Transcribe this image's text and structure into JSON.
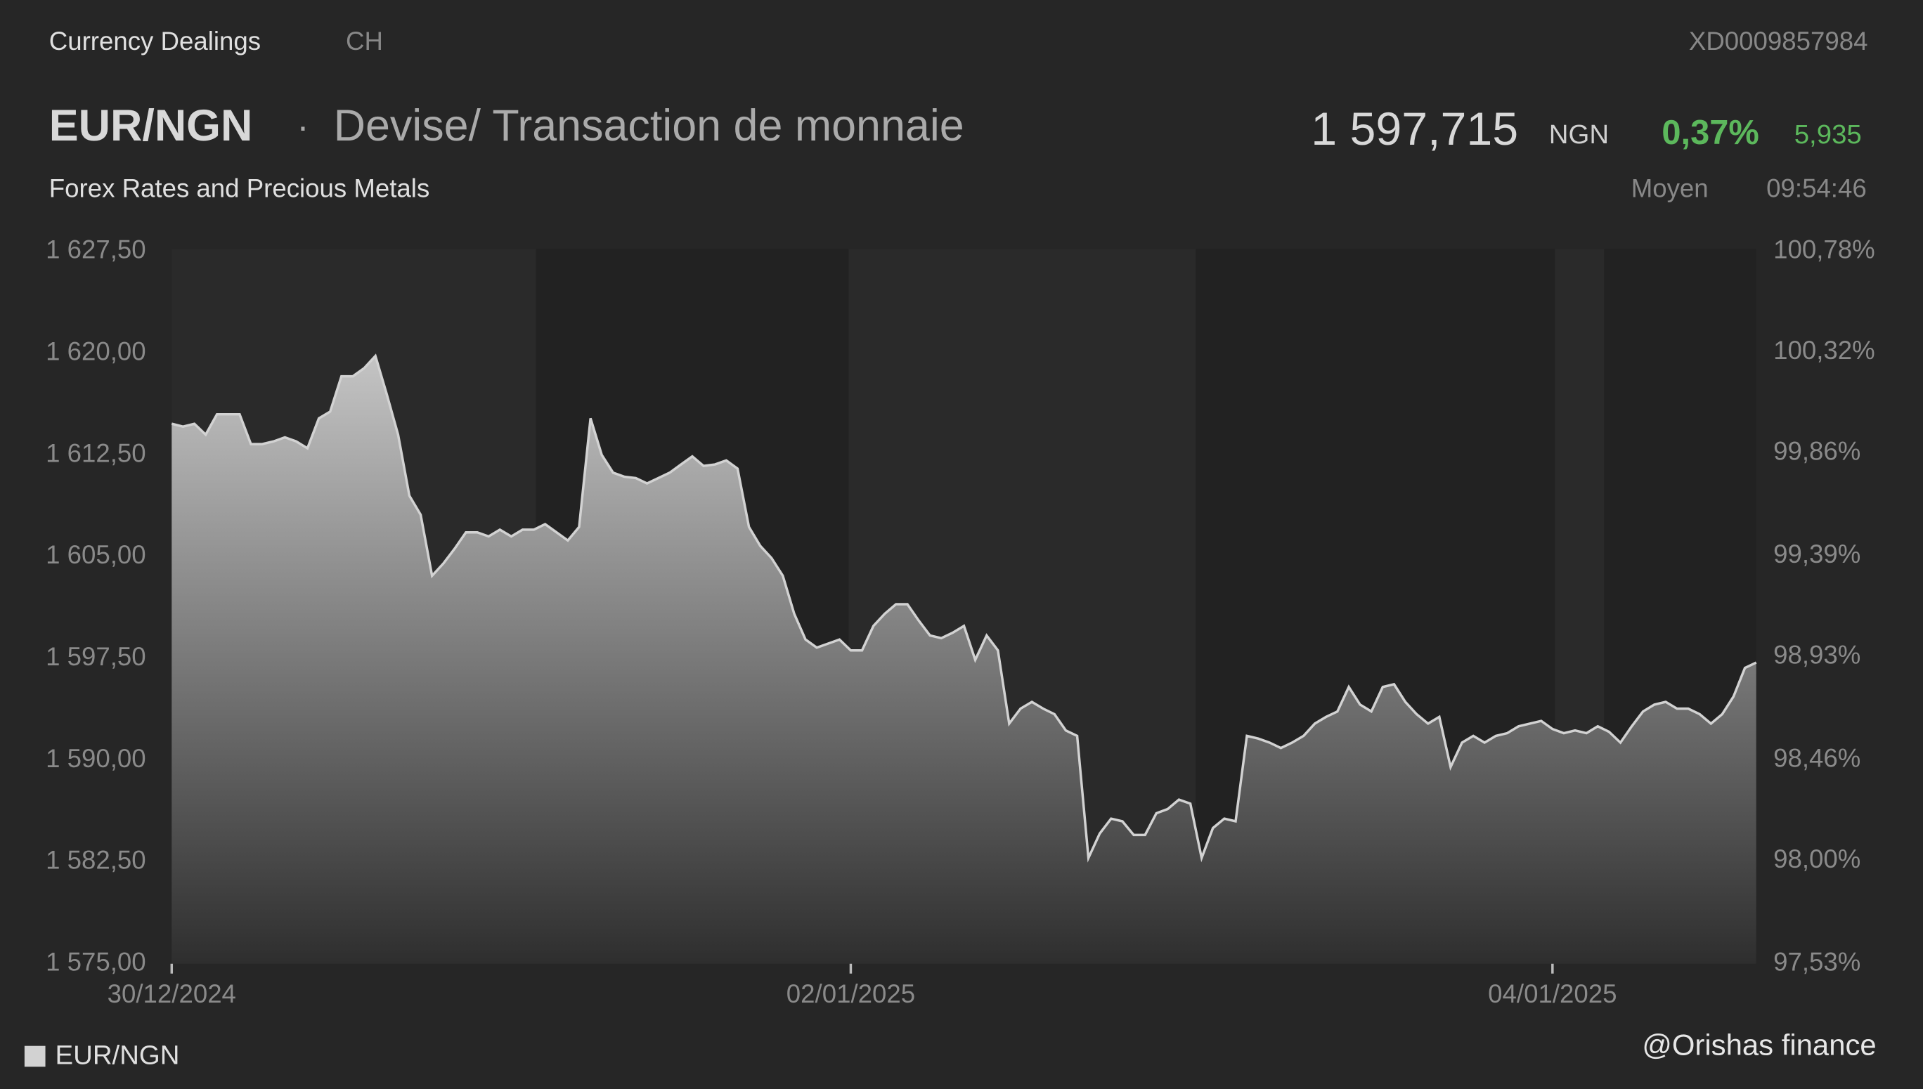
{
  "header": {
    "section": "Currency Dealings",
    "market": "CH",
    "isin": "XD0009857984",
    "symbol": "EUR/NGN",
    "separator": "·",
    "description": "Devise/ Transaction de monnaie",
    "price": "1 597,715",
    "currency": "NGN",
    "change_pct": "0,37%",
    "change_abs": "5,935",
    "category": "Forex Rates and Precious Metals",
    "price_type": "Moyen",
    "time": "09:54:46",
    "watermark": "@Orishas finance"
  },
  "chart_data": {
    "type": "area",
    "xlim": [
      0,
      140
    ],
    "xticks": [
      {
        "value": 0,
        "label": "30/12/2024"
      },
      {
        "value": 60,
        "label": "02/01/2025"
      },
      {
        "value": 122,
        "label": "04/01/2025"
      }
    ],
    "ylim": [
      1575,
      1627.5
    ],
    "yticks": [
      {
        "value": 1575,
        "label": "1 575,00"
      },
      {
        "value": 1582.5,
        "label": "1 582,50"
      },
      {
        "value": 1590,
        "label": "1 590,00"
      },
      {
        "value": 1597.5,
        "label": "1 597,50"
      },
      {
        "value": 1605,
        "label": "1 605,00"
      },
      {
        "value": 1612.5,
        "label": "1 612,50"
      },
      {
        "value": 1620,
        "label": "1 620,00"
      },
      {
        "value": 1627.5,
        "label": "1 627,50"
      }
    ],
    "y2lim": [
      97.53,
      100.78
    ],
    "y2ticks": [
      {
        "value": 97.53,
        "label": "97,53%"
      },
      {
        "value": 98.0,
        "label": "98,00%"
      },
      {
        "value": 98.46,
        "label": "98,46%"
      },
      {
        "value": 98.93,
        "label": "98,93%"
      },
      {
        "value": 99.39,
        "label": "99,39%"
      },
      {
        "value": 99.86,
        "label": "99,86%"
      },
      {
        "value": 100.32,
        "label": "100,32%"
      },
      {
        "value": 100.78,
        "label": "100,78%"
      }
    ],
    "series": [
      {
        "name": "EUR/NGN",
        "color": "#d2d2d2",
        "x": [
          0,
          1,
          2,
          3,
          4,
          5,
          6,
          7,
          8,
          9,
          10,
          11,
          12,
          13,
          14,
          15,
          16,
          17,
          18,
          19,
          20,
          21,
          22,
          23,
          24,
          25,
          26,
          27,
          28,
          29,
          30,
          31,
          32,
          33,
          34,
          35,
          36,
          37,
          38,
          39,
          40,
          41,
          42,
          43,
          44,
          45,
          46,
          47,
          48,
          49,
          50,
          51,
          52,
          53,
          54,
          55,
          56,
          57,
          58,
          59,
          60,
          61,
          62,
          63,
          64,
          65,
          66,
          67,
          68,
          69,
          70,
          71,
          72,
          73,
          74,
          75,
          76,
          77,
          78,
          79,
          80,
          81,
          82,
          83,
          84,
          85,
          86,
          87,
          88,
          89,
          90,
          91,
          92,
          93,
          94,
          95,
          96,
          97,
          98,
          99,
          100,
          101,
          102,
          103,
          104,
          105,
          106,
          107,
          108,
          109,
          110,
          111,
          112,
          113,
          114,
          115,
          116,
          117,
          118,
          119,
          120,
          121,
          122,
          123,
          124,
          125,
          126,
          127,
          128,
          129,
          130,
          131,
          132,
          133,
          134,
          135,
          136,
          137,
          138,
          139,
          140
        ],
        "values": [
          1614.8,
          1614.6,
          1614.8,
          1614.0,
          1615.5,
          1615.5,
          1615.5,
          1613.3,
          1613.3,
          1613.5,
          1613.8,
          1613.5,
          1613.0,
          1615.2,
          1615.7,
          1618.3,
          1618.3,
          1618.9,
          1619.8,
          1617.0,
          1614.0,
          1609.5,
          1608.1,
          1603.6,
          1604.5,
          1605.6,
          1606.8,
          1606.8,
          1606.5,
          1607.0,
          1606.5,
          1607.0,
          1607.0,
          1607.4,
          1606.8,
          1606.2,
          1607.2,
          1615.2,
          1612.5,
          1611.2,
          1610.9,
          1610.8,
          1610.4,
          1610.8,
          1611.2,
          1611.8,
          1612.4,
          1611.7,
          1611.8,
          1612.1,
          1611.5,
          1607.2,
          1605.8,
          1604.9,
          1603.6,
          1600.8,
          1598.9,
          1598.3,
          1598.6,
          1598.9,
          1598.1,
          1598.1,
          1599.9,
          1600.8,
          1601.5,
          1601.5,
          1600.3,
          1599.2,
          1599.0,
          1599.4,
          1599.9,
          1597.4,
          1599.2,
          1598.1,
          1592.7,
          1593.8,
          1594.3,
          1593.8,
          1593.4,
          1592.2,
          1591.8,
          1582.8,
          1584.6,
          1585.7,
          1585.5,
          1584.5,
          1584.5,
          1586.1,
          1586.4,
          1587.1,
          1586.8,
          1582.8,
          1585.0,
          1585.7,
          1585.5,
          1591.8,
          1591.6,
          1591.3,
          1590.9,
          1591.3,
          1591.8,
          1592.7,
          1593.2,
          1593.6,
          1595.4,
          1594.1,
          1593.6,
          1595.4,
          1595.6,
          1594.3,
          1593.4,
          1592.7,
          1593.2,
          1589.5,
          1591.3,
          1591.8,
          1591.3,
          1591.8,
          1592.0,
          1592.5,
          1592.7,
          1592.9,
          1592.3,
          1592.0,
          1592.2,
          1592.0,
          1592.5,
          1592.1,
          1591.3,
          1592.5,
          1593.6,
          1594.1,
          1594.3,
          1593.8,
          1593.8,
          1593.4,
          1592.7,
          1593.4,
          1594.7,
          1596.8,
          1597.2
        ]
      }
    ]
  }
}
